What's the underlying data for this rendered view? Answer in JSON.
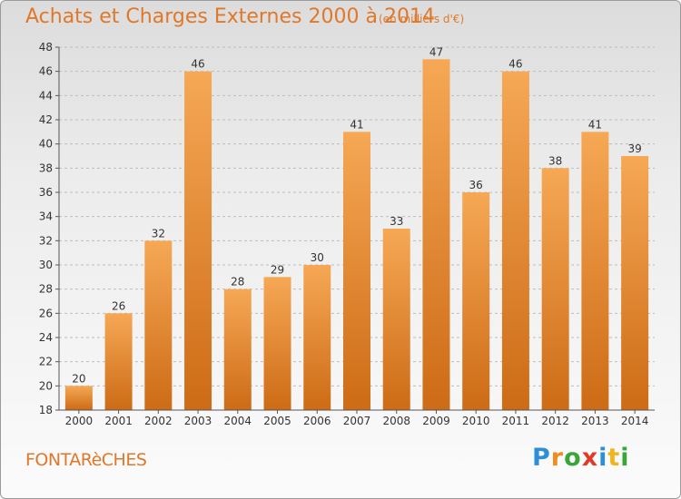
{
  "header": {
    "title": "Achats et Charges Externes 2000 à 2014",
    "subtitle": "(en milliers d'€)"
  },
  "footer": {
    "place": "FONTARèCHES",
    "logo": {
      "letters": [
        "P",
        "r",
        "o",
        "x",
        "i",
        "t",
        "i"
      ],
      "colors": [
        "#2e8fd6",
        "#f08c1e",
        "#3aa63a",
        "#e03a2a",
        "#2e8fd6",
        "#f0b41e",
        "#3aa63a"
      ]
    }
  },
  "colors": {
    "bar_light": "#f6a855",
    "bar_dark": "#cd6b16",
    "grid": "#bdbdbd",
    "axis_text": "#333333"
  },
  "chart_data": {
    "type": "bar",
    "title": "Achats et Charges Externes 2000 à 2014",
    "subtitle": "(en milliers d'€)",
    "categories": [
      "2000",
      "2001",
      "2002",
      "2003",
      "2004",
      "2005",
      "2006",
      "2007",
      "2008",
      "2009",
      "2010",
      "2011",
      "2012",
      "2013",
      "2014"
    ],
    "values": [
      20,
      26,
      32,
      46,
      28,
      29,
      30,
      41,
      33,
      47,
      36,
      46,
      38,
      41,
      39
    ],
    "ylim": [
      18,
      48
    ],
    "yticks": [
      18,
      20,
      22,
      24,
      26,
      28,
      30,
      32,
      34,
      36,
      38,
      40,
      42,
      44,
      46,
      48
    ],
    "grid": true,
    "xlabel": "",
    "ylabel": ""
  }
}
